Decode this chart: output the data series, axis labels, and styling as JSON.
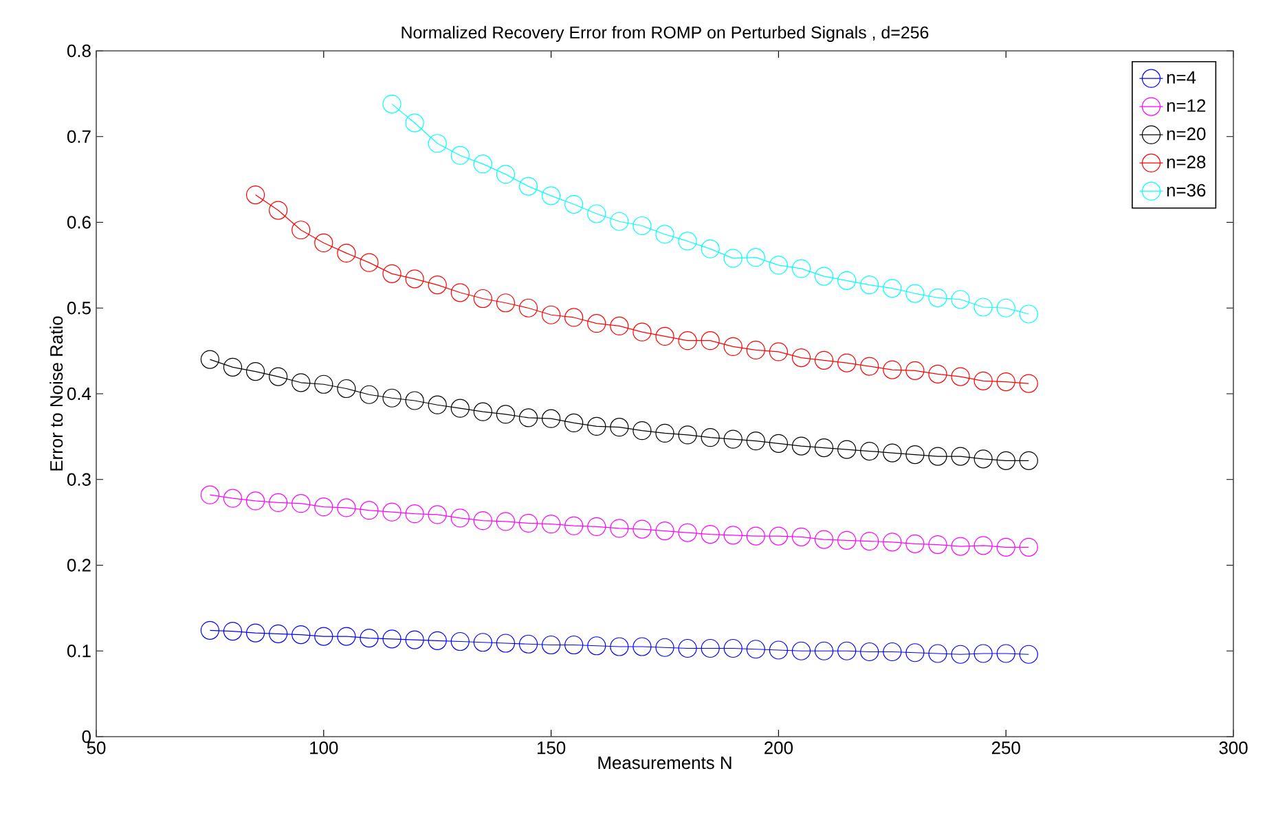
{
  "chart_data": {
    "type": "line",
    "title": "Normalized Recovery Error from ROMP on Perturbed Signals , d=256",
    "xlabel": "Measurements N",
    "ylabel": "Error to Noise Ratio",
    "xlim": [
      50,
      300
    ],
    "ylim": [
      0,
      0.8
    ],
    "xticks": [
      50,
      100,
      150,
      200,
      250,
      300
    ],
    "yticks": [
      0,
      0.1,
      0.2,
      0.3,
      0.4,
      0.5,
      0.6,
      0.7,
      0.8
    ],
    "legend": "top right",
    "marker": "circle",
    "line_style": "solid",
    "grid": false,
    "series": [
      {
        "name": "n=4",
        "color": "#0000ff",
        "x": [
          75,
          80,
          85,
          90,
          95,
          100,
          105,
          110,
          115,
          120,
          125,
          130,
          135,
          140,
          145,
          150,
          155,
          160,
          165,
          170,
          175,
          180,
          185,
          190,
          195,
          200,
          205,
          210,
          215,
          220,
          225,
          230,
          235,
          240,
          245,
          250,
          255
        ],
        "values": [
          0.124,
          0.123,
          0.121,
          0.12,
          0.119,
          0.117,
          0.117,
          0.115,
          0.114,
          0.113,
          0.112,
          0.111,
          0.11,
          0.109,
          0.108,
          0.107,
          0.107,
          0.106,
          0.105,
          0.105,
          0.104,
          0.103,
          0.103,
          0.103,
          0.102,
          0.101,
          0.1,
          0.1,
          0.1,
          0.099,
          0.099,
          0.098,
          0.097,
          0.096,
          0.097,
          0.097,
          0.096
        ]
      },
      {
        "name": "n=12",
        "color": "#ff00ff",
        "x": [
          75,
          80,
          85,
          90,
          95,
          100,
          105,
          110,
          115,
          120,
          125,
          130,
          135,
          140,
          145,
          150,
          155,
          160,
          165,
          170,
          175,
          180,
          185,
          190,
          195,
          200,
          205,
          210,
          215,
          220,
          225,
          230,
          235,
          240,
          245,
          250,
          255
        ],
        "values": [
          0.282,
          0.278,
          0.275,
          0.273,
          0.272,
          0.268,
          0.267,
          0.264,
          0.262,
          0.26,
          0.259,
          0.255,
          0.252,
          0.251,
          0.249,
          0.248,
          0.246,
          0.245,
          0.243,
          0.242,
          0.24,
          0.238,
          0.236,
          0.235,
          0.234,
          0.234,
          0.233,
          0.23,
          0.229,
          0.228,
          0.227,
          0.225,
          0.224,
          0.222,
          0.223,
          0.221,
          0.221
        ]
      },
      {
        "name": "n=20",
        "color": "#000000",
        "x": [
          75,
          80,
          85,
          90,
          95,
          100,
          105,
          110,
          115,
          120,
          125,
          130,
          135,
          140,
          145,
          150,
          155,
          160,
          165,
          170,
          175,
          180,
          185,
          190,
          195,
          200,
          205,
          210,
          215,
          220,
          225,
          230,
          235,
          240,
          245,
          250,
          255
        ],
        "values": [
          0.44,
          0.431,
          0.426,
          0.42,
          0.413,
          0.411,
          0.406,
          0.399,
          0.395,
          0.392,
          0.387,
          0.383,
          0.379,
          0.376,
          0.372,
          0.371,
          0.366,
          0.362,
          0.361,
          0.357,
          0.354,
          0.352,
          0.349,
          0.347,
          0.345,
          0.342,
          0.339,
          0.337,
          0.335,
          0.333,
          0.331,
          0.329,
          0.327,
          0.327,
          0.324,
          0.322,
          0.322
        ]
      },
      {
        "name": "n=28",
        "color": "#ff0000",
        "x": [
          85,
          90,
          95,
          100,
          105,
          110,
          115,
          120,
          125,
          130,
          135,
          140,
          145,
          150,
          155,
          160,
          165,
          170,
          175,
          180,
          185,
          190,
          195,
          200,
          205,
          210,
          215,
          220,
          225,
          230,
          235,
          240,
          245,
          250,
          255
        ],
        "values": [
          0.632,
          0.614,
          0.591,
          0.576,
          0.564,
          0.553,
          0.54,
          0.534,
          0.527,
          0.518,
          0.511,
          0.506,
          0.5,
          0.492,
          0.489,
          0.482,
          0.479,
          0.472,
          0.467,
          0.462,
          0.462,
          0.455,
          0.451,
          0.449,
          0.442,
          0.439,
          0.436,
          0.432,
          0.428,
          0.427,
          0.423,
          0.42,
          0.415,
          0.414,
          0.412
        ]
      },
      {
        "name": "n=36",
        "color": "#00ffff",
        "x": [
          115,
          120,
          125,
          130,
          135,
          140,
          145,
          150,
          155,
          160,
          165,
          170,
          175,
          180,
          185,
          190,
          195,
          200,
          205,
          210,
          215,
          220,
          225,
          230,
          235,
          240,
          245,
          250,
          255
        ],
        "values": [
          0.738,
          0.716,
          0.692,
          0.678,
          0.668,
          0.656,
          0.642,
          0.631,
          0.621,
          0.61,
          0.601,
          0.596,
          0.586,
          0.578,
          0.569,
          0.558,
          0.559,
          0.55,
          0.546,
          0.537,
          0.532,
          0.527,
          0.523,
          0.517,
          0.512,
          0.51,
          0.501,
          0.5,
          0.493
        ]
      }
    ]
  }
}
